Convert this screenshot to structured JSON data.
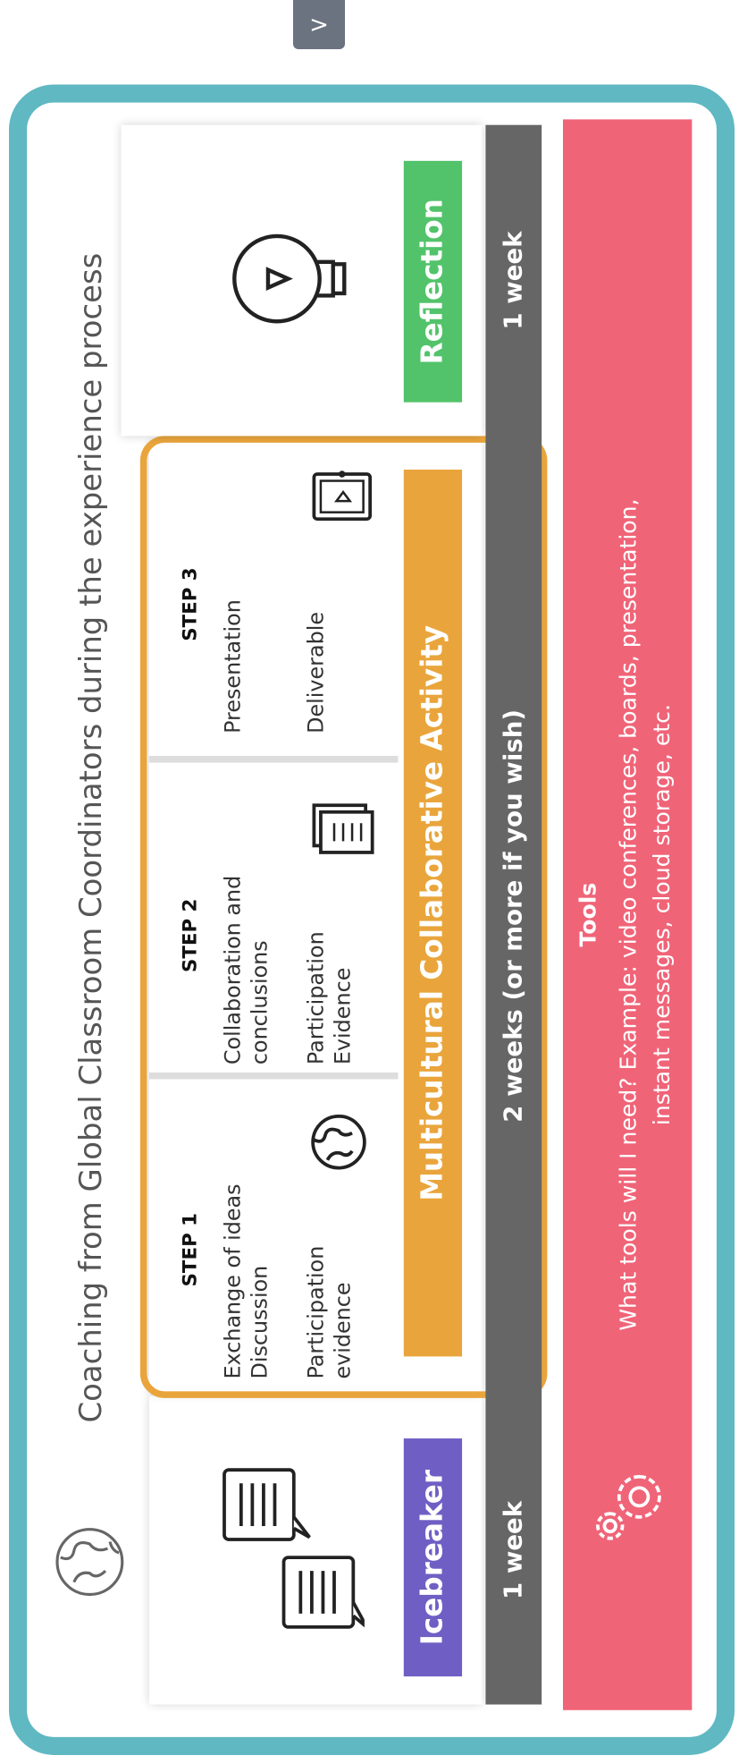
{
  "nav": {
    "label": ">"
  },
  "title": "Coaching from Global Classroom Coordinators during the experience process",
  "icebreaker": {
    "label": "Icebreaker",
    "duration": "1 week"
  },
  "activity": {
    "label": "Multicultural Collaborative Activity",
    "duration": "2 weeks (or more if you wish)",
    "steps": [
      {
        "step": "STEP 1",
        "task": [
          "Exchange of ideas",
          "Discussion"
        ],
        "output": [
          "Participation",
          "evidence"
        ]
      },
      {
        "step": "STEP 2",
        "task": [
          "Collaboration and",
          "conclusions"
        ],
        "output": [
          "Participation",
          "Evidence"
        ]
      },
      {
        "step": "STEP 3",
        "task": [
          "Presentation"
        ],
        "output": [
          "Deliverable"
        ]
      }
    ]
  },
  "reflection": {
    "label": "Reflection",
    "duration": "1 week"
  },
  "tools": {
    "title": "Tools",
    "description": [
      "What tools will I need? Example: video conferences, boards, presentation,",
      "instant messages, cloud storage, etc."
    ]
  }
}
